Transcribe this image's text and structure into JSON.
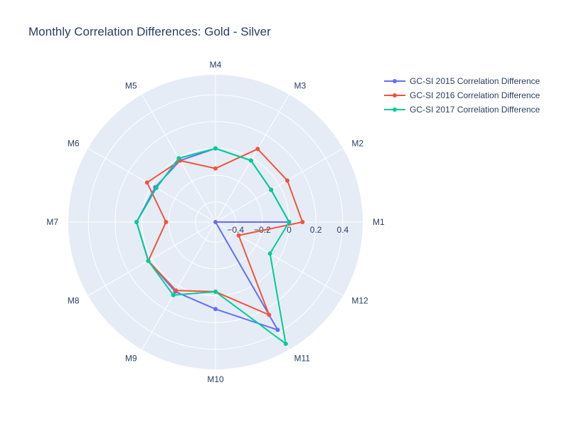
{
  "chart_data": {
    "type": "polar-line",
    "title": "Monthly Correlation Differences: Gold - Silver",
    "categories": [
      "M1",
      "M2",
      "M3",
      "M4",
      "M5",
      "M6",
      "M7",
      "M8",
      "M9",
      "M10",
      "M11",
      "M12"
    ],
    "radial_axis": {
      "range": [
        -0.55,
        0.55
      ],
      "ticks": [
        -0.4,
        -0.2,
        0,
        0.2,
        0.4
      ],
      "tick_labels": [
        "−0.4",
        "−0.2",
        "0",
        "0.2",
        "0.4"
      ]
    },
    "grid": true,
    "legend": "top-right",
    "series": [
      {
        "name": "GC-SI 2015 Correlation Difference",
        "color": "#636efa",
        "values": [
          0.0,
          -0.07,
          -0.02,
          0.0,
          -0.02,
          -0.03,
          0.04,
          0.03,
          0.05,
          0.1,
          0.38,
          -0.55
        ]
      },
      {
        "name": "GC-SI 2016 Correlation Difference",
        "color": "#ef553b",
        "values": [
          0.1,
          0.07,
          0.08,
          -0.15,
          -0.02,
          0.04,
          -0.18,
          0.03,
          0.04,
          -0.03,
          0.25,
          -0.35
        ]
      },
      {
        "name": "GC-SI 2017 Correlation Difference",
        "color": "#00cc96",
        "values": [
          0.0,
          -0.07,
          -0.02,
          0.0,
          0.0,
          -0.04,
          0.04,
          0.03,
          0.08,
          -0.03,
          0.5,
          -0.08
        ]
      }
    ]
  }
}
